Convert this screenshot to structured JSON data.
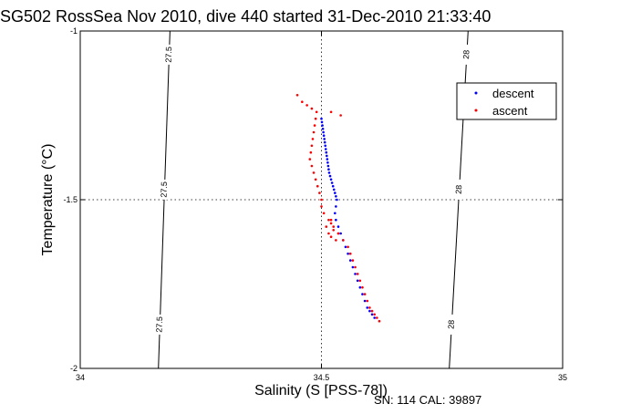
{
  "chart_data": {
    "type": "scatter",
    "title": "SG502 RossSea Nov 2010, dive 440 started 31-Dec-2010 21:33:40",
    "xlabel": "Salinity (S [PSS-78])",
    "ylabel": "Temperature (°C)",
    "xlim": [
      34,
      35
    ],
    "ylim": [
      -2,
      -1
    ],
    "x_ticks": [
      "34",
      "34.5",
      "35"
    ],
    "y_ticks": [
      "-1",
      "-1.5",
      "-2"
    ],
    "x_tick_values": [
      34,
      34.5,
      35
    ],
    "y_tick_values": [
      -1,
      -1.5,
      -2
    ],
    "grid": "dotted-at-midlines",
    "legend_position": "top-right",
    "isopycnals": [
      {
        "label": "27.5",
        "points": [
          [
            34.186,
            -1
          ],
          [
            34.162,
            -2
          ]
        ]
      },
      {
        "label": "28",
        "points": [
          [
            34.804,
            -1
          ],
          [
            34.765,
            -2
          ]
        ]
      }
    ],
    "series": [
      {
        "name": "descent",
        "color": "#0000ff",
        "points": [
          [
            34.5,
            -1.26
          ],
          [
            34.501,
            -1.27
          ],
          [
            34.502,
            -1.28
          ],
          [
            34.503,
            -1.29
          ],
          [
            34.504,
            -1.3
          ],
          [
            34.505,
            -1.31
          ],
          [
            34.506,
            -1.32
          ],
          [
            34.507,
            -1.33
          ],
          [
            34.508,
            -1.34
          ],
          [
            34.509,
            -1.35
          ],
          [
            34.51,
            -1.36
          ],
          [
            34.511,
            -1.37
          ],
          [
            34.512,
            -1.38
          ],
          [
            34.513,
            -1.39
          ],
          [
            34.514,
            -1.4
          ],
          [
            34.515,
            -1.41
          ],
          [
            34.516,
            -1.42
          ],
          [
            34.518,
            -1.43
          ],
          [
            34.52,
            -1.44
          ],
          [
            34.522,
            -1.45
          ],
          [
            34.524,
            -1.46
          ],
          [
            34.526,
            -1.47
          ],
          [
            34.528,
            -1.48
          ],
          [
            34.53,
            -1.49
          ],
          [
            34.532,
            -1.5
          ],
          [
            34.53,
            -1.52
          ],
          [
            34.528,
            -1.54
          ],
          [
            34.53,
            -1.56
          ],
          [
            34.535,
            -1.58
          ],
          [
            34.54,
            -1.6
          ],
          [
            34.545,
            -1.62
          ],
          [
            34.55,
            -1.64
          ],
          [
            34.555,
            -1.66
          ],
          [
            34.56,
            -1.68
          ],
          [
            34.565,
            -1.7
          ],
          [
            34.57,
            -1.72
          ],
          [
            34.575,
            -1.74
          ],
          [
            34.58,
            -1.76
          ],
          [
            34.585,
            -1.78
          ],
          [
            34.59,
            -1.8
          ],
          [
            34.595,
            -1.82
          ],
          [
            34.6,
            -1.83
          ],
          [
            34.605,
            -1.84
          ],
          [
            34.61,
            -1.85
          ]
        ]
      },
      {
        "name": "ascent",
        "color": "#ff0000",
        "points": [
          [
            34.45,
            -1.19
          ],
          [
            34.46,
            -1.21
          ],
          [
            34.47,
            -1.22
          ],
          [
            34.48,
            -1.23
          ],
          [
            34.49,
            -1.24
          ],
          [
            34.52,
            -1.24
          ],
          [
            34.54,
            -1.25
          ],
          [
            34.488,
            -1.26
          ],
          [
            34.486,
            -1.28
          ],
          [
            34.484,
            -1.3
          ],
          [
            34.482,
            -1.32
          ],
          [
            34.48,
            -1.34
          ],
          [
            34.478,
            -1.36
          ],
          [
            34.476,
            -1.38
          ],
          [
            34.48,
            -1.4
          ],
          [
            34.484,
            -1.42
          ],
          [
            34.488,
            -1.44
          ],
          [
            34.492,
            -1.46
          ],
          [
            34.496,
            -1.48
          ],
          [
            34.5,
            -1.5
          ],
          [
            34.5,
            -1.52
          ],
          [
            34.505,
            -1.54
          ],
          [
            34.515,
            -1.56
          ],
          [
            34.525,
            -1.58
          ],
          [
            34.535,
            -1.6
          ],
          [
            34.545,
            -1.62
          ],
          [
            34.555,
            -1.64
          ],
          [
            34.56,
            -1.66
          ],
          [
            34.565,
            -1.68
          ],
          [
            34.57,
            -1.7
          ],
          [
            34.575,
            -1.72
          ],
          [
            34.58,
            -1.74
          ],
          [
            34.585,
            -1.76
          ],
          [
            34.59,
            -1.78
          ],
          [
            34.595,
            -1.8
          ],
          [
            34.6,
            -1.82
          ],
          [
            34.605,
            -1.83
          ],
          [
            34.61,
            -1.84
          ],
          [
            34.615,
            -1.85
          ],
          [
            34.62,
            -1.86
          ],
          [
            34.51,
            -1.58
          ],
          [
            34.515,
            -1.6
          ],
          [
            34.52,
            -1.61
          ],
          [
            34.53,
            -1.62
          ],
          [
            34.52,
            -1.56
          ],
          [
            34.52,
            -1.57
          ],
          [
            34.525,
            -1.59
          ],
          [
            34.535,
            -1.6
          ]
        ]
      }
    ]
  },
  "footer": {
    "text": "SN: 114  CAL: 39897"
  }
}
